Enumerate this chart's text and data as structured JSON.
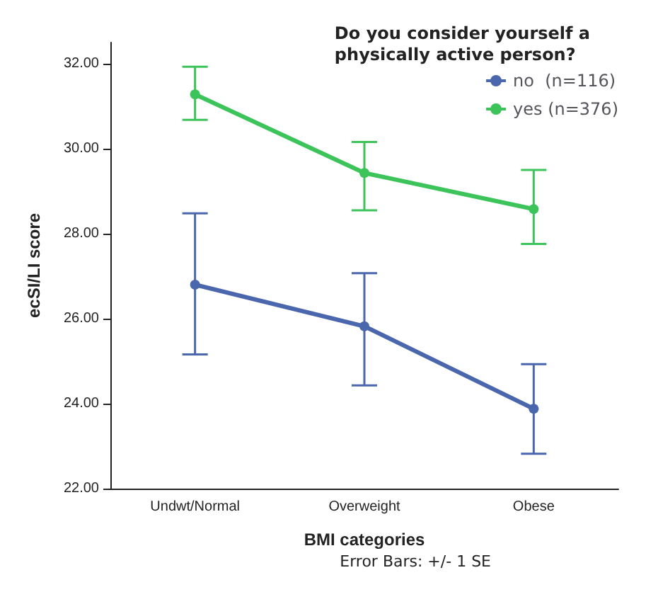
{
  "chart_data": {
    "type": "line",
    "xlabel": "BMI categories",
    "ylabel": "ecSI/LI score",
    "legend_title": "Do you consider yourself a\nphysically active person?",
    "categories": [
      "Undwt/Normal",
      "Overweight",
      "Obese"
    ],
    "series": [
      {
        "name": "no  (n=116)",
        "color": "#4a66ad",
        "values": [
          26.8,
          25.82,
          23.88
        ],
        "errors": [
          [
            25.16,
            28.48
          ],
          [
            24.43,
            27.07
          ],
          [
            22.82,
            24.93
          ]
        ]
      },
      {
        "name": "yes (n=376)",
        "color": "#3cc45a",
        "values": [
          31.28,
          29.43,
          28.58
        ],
        "errors": [
          [
            30.68,
            31.93
          ],
          [
            28.55,
            30.16
          ],
          [
            27.76,
            29.5
          ]
        ]
      }
    ],
    "ylim": [
      22,
      32.5
    ],
    "yticks": [
      {
        "value": 22,
        "label": "22.00"
      },
      {
        "value": 24,
        "label": "24.00"
      },
      {
        "value": 26,
        "label": "26.00"
      },
      {
        "value": 28,
        "label": "28.00"
      },
      {
        "value": 30,
        "label": "30.00"
      },
      {
        "value": 32,
        "label": "32.00"
      }
    ],
    "grid": false,
    "legend": "top right",
    "marker": "circle",
    "line_style": "solid",
    "annotations": [
      "Error Bars: +/- 1 SE"
    ]
  }
}
